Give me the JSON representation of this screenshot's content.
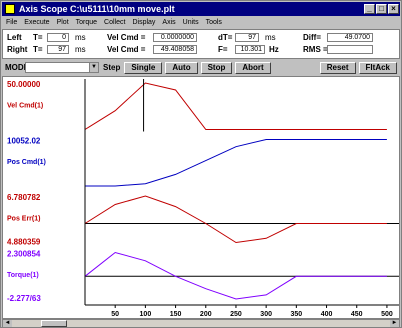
{
  "window": {
    "title": "Axis Scope   C:\\u5111\\10mm move.plt"
  },
  "menu": [
    "File",
    "Execute",
    "Plot",
    "Torque",
    "Collect",
    "Display",
    "Axis",
    "Units",
    "Tools"
  ],
  "params": {
    "left_label": "Left",
    "left_t_label": "T=",
    "left_t_value": "0",
    "left_unit": "ms",
    "right_label": "Right",
    "right_t_label": "T=",
    "right_t_value": "97",
    "right_unit": "ms",
    "vel1_label": "Vel Cmd =",
    "vel1_value": "0.0000000",
    "vel2_label": "Vel Cmd =",
    "vel2_value": "49.408058",
    "dt_label": "dT=",
    "dt_value": "97",
    "dt_unit": "ms",
    "f_label": "F=",
    "f_value": "10.301",
    "f_unit": "Hz",
    "diff_label": "Diff=",
    "diff_value": "49.0700",
    "rms_label": "RMS =",
    "rms_value": ""
  },
  "controls": {
    "mode_label": "MODE",
    "mode_value": "",
    "step_label": "Step",
    "single": "Single",
    "auto": "Auto",
    "stop": "Stop",
    "abort": "Abort",
    "reset": "Reset",
    "rack": "FltAck"
  },
  "chart_data": {
    "type": "line",
    "x": [
      0,
      50,
      100,
      150,
      200,
      250,
      300,
      350,
      400,
      450,
      500
    ],
    "xlim": [
      0,
      520
    ],
    "xticks": [
      "50",
      "100",
      "150",
      "200",
      "250",
      "300",
      "350",
      "400",
      "450",
      "500"
    ],
    "colors": {
      "vel": "#c00000",
      "pos": "#0000c0",
      "pos_err": "#c00000",
      "torque": "#8000ff"
    },
    "panels": [
      {
        "name": "Vel Cmd(1)",
        "top_label": "50.00000",
        "bottom_label": "",
        "values": [
          0,
          20,
          49.4,
          42,
          0,
          0,
          0,
          0,
          0,
          0,
          0
        ]
      },
      {
        "name": "Pos Cmd(1)",
        "top_label": "10052.02",
        "bottom_label": "",
        "values": [
          0,
          0,
          500,
          2500,
          5500,
          8500,
          10052,
          10052,
          10052,
          10052,
          10052
        ]
      },
      {
        "name": "Pos Err(1)",
        "top_label": "6.780782",
        "bottom_label": "4.880359",
        "values": [
          0,
          4.5,
          6.5,
          4,
          0,
          -4.5,
          -3.5,
          0,
          0,
          0,
          0
        ]
      },
      {
        "name": "Torque(1)",
        "top_label": "2.300854",
        "bottom_label": "-2.277/63",
        "values": [
          0,
          2.3,
          1.5,
          0,
          -1.2,
          -2.2,
          -1.8,
          0,
          0,
          0,
          0
        ]
      }
    ]
  }
}
